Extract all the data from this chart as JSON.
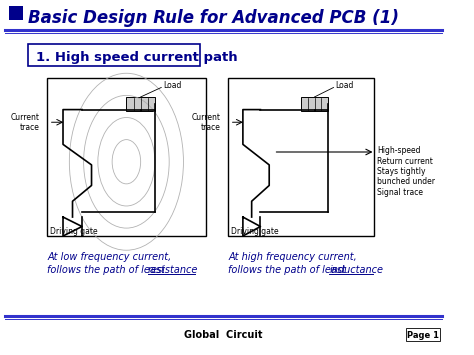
{
  "title": "Basic Design Rule for Advanced PCB (1)",
  "title_square_color": "#00008B",
  "title_color": "#00008B",
  "subtitle": "1. High speed current path",
  "subtitle_color": "#00008B",
  "bg_color": "#FFFFFF",
  "header_line_color": "#3333CC",
  "footer_line_color": "#3333CC",
  "footer_left": "Global  Circuit",
  "footer_right": "Page 1",
  "left_caption_line1": "At low frequency current,",
  "left_caption_line2": "follows the path of least ",
  "left_caption_underline": "resistance",
  "right_caption_line1": "At high frequency current,",
  "right_caption_line2": "follows the path of least ",
  "right_caption_underline": "inductance",
  "caption_color": "#00008B",
  "diagram_border_color": "#000000",
  "right_labels": [
    "High-speed",
    "Return current",
    "Stays tightly",
    "bunched under",
    "Signal trace"
  ]
}
